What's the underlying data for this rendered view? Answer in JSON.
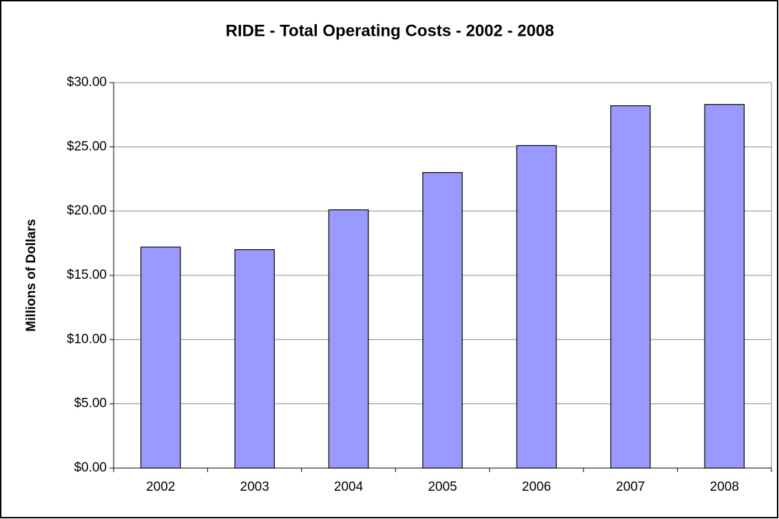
{
  "chart_data": {
    "type": "bar",
    "title": "RIDE - Total Operating Costs - 2002 - 2008",
    "y_label": "Millions of Dollars",
    "categories": [
      "2002",
      "2003",
      "2004",
      "2005",
      "2006",
      "2007",
      "2008"
    ],
    "values": [
      17.2,
      17.0,
      20.1,
      23.0,
      25.1,
      28.2,
      28.3
    ],
    "color": "#9999ff",
    "ylim": [
      0,
      30
    ],
    "yticks": [
      {
        "value": 0,
        "label": "$0.00"
      },
      {
        "value": 5,
        "label": "$5.00"
      },
      {
        "value": 10,
        "label": "$10.00"
      },
      {
        "value": 15,
        "label": "$15.00"
      },
      {
        "value": 20,
        "label": "$20.00"
      },
      {
        "value": 25,
        "label": "$25.00"
      },
      {
        "value": 30,
        "label": "$30.00"
      }
    ],
    "grid": true
  }
}
